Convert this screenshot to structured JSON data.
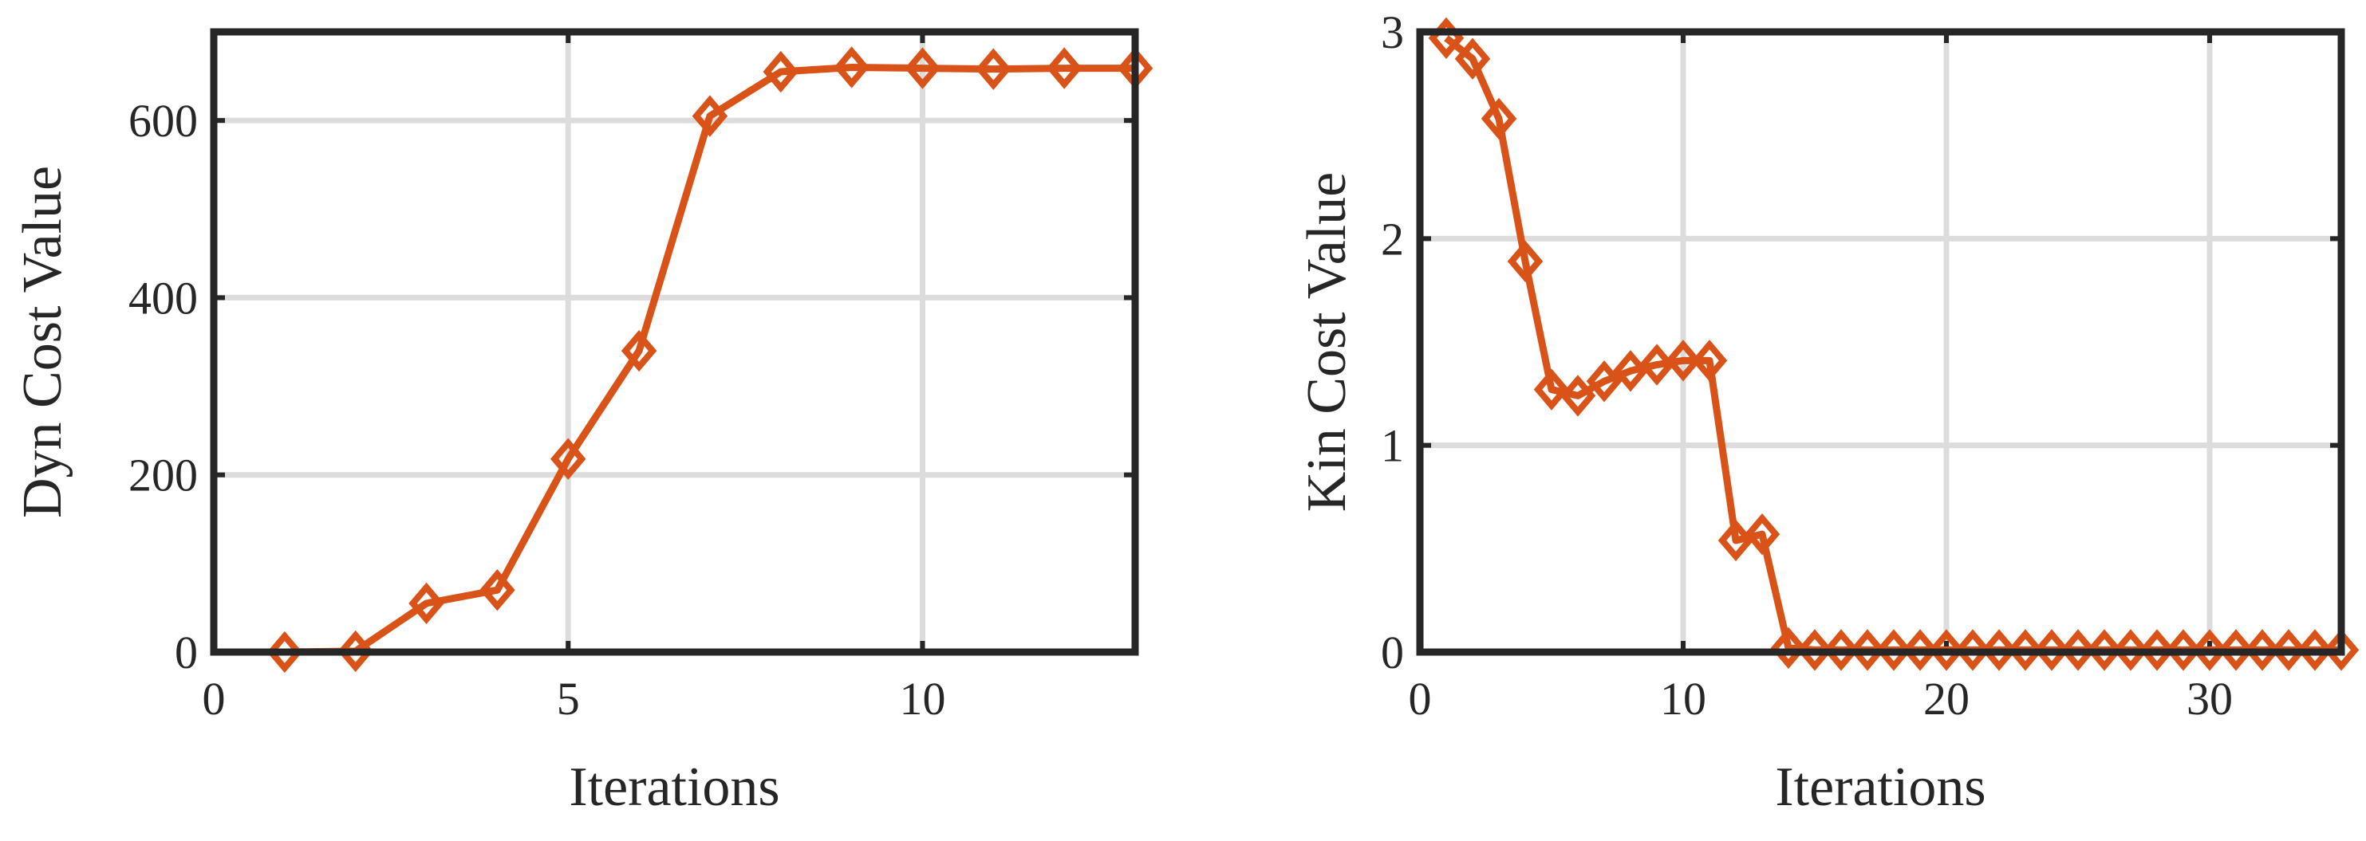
{
  "chart_data": [
    {
      "type": "line",
      "xlabel": "Iterations",
      "ylabel": "Dyn Cost Value",
      "xlim": [
        0,
        13
      ],
      "ylim": [
        0,
        700
      ],
      "xticks": [
        0,
        5,
        10
      ],
      "yticks": [
        0,
        200,
        400,
        600
      ],
      "grid": true,
      "color": "#d95319",
      "marker": "diamond",
      "series": [
        {
          "x": [
            1,
            2,
            3,
            4,
            5,
            6,
            7,
            8,
            9,
            10,
            11,
            12,
            13
          ],
          "y": [
            0,
            1,
            55,
            70,
            218,
            340,
            605,
            655,
            660,
            659,
            658,
            659,
            659
          ]
        }
      ]
    },
    {
      "type": "line",
      "xlabel": "Iterations",
      "ylabel": "Kin Cost Value",
      "xlim": [
        0,
        35
      ],
      "ylim": [
        0,
        3
      ],
      "xticks": [
        0,
        10,
        20,
        30
      ],
      "yticks": [
        0,
        1,
        2,
        3
      ],
      "grid": true,
      "color": "#d95319",
      "marker": "diamond",
      "series": [
        {
          "x": [
            1,
            2,
            3,
            4,
            5,
            6,
            7,
            8,
            9,
            10,
            11,
            12,
            13,
            14,
            15,
            16,
            17,
            18,
            19,
            20,
            21,
            22,
            23,
            24,
            25,
            26,
            27,
            28,
            29,
            30,
            31,
            32,
            33,
            34,
            35
          ],
          "y": [
            2.97,
            2.87,
            2.58,
            1.89,
            1.27,
            1.24,
            1.31,
            1.36,
            1.39,
            1.41,
            1.41,
            0.54,
            0.57,
            0.02,
            0.01,
            0.01,
            0.01,
            0.01,
            0.01,
            0.01,
            0.01,
            0.01,
            0.01,
            0.01,
            0.01,
            0.01,
            0.01,
            0.01,
            0.01,
            0.01,
            0.01,
            0.01,
            0.01,
            0.01,
            0.01
          ]
        }
      ]
    }
  ]
}
